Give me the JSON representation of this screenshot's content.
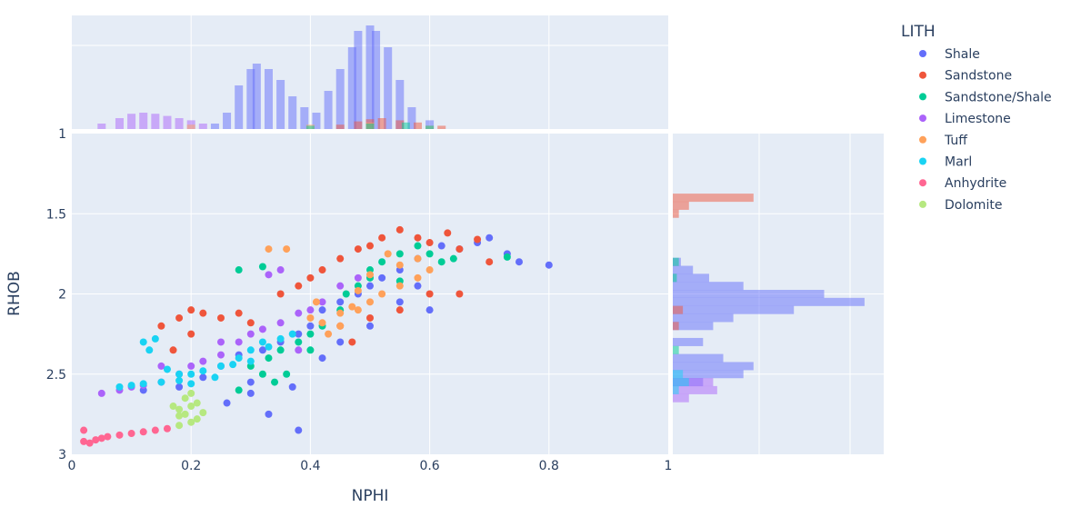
{
  "chart_data": {
    "type": "scatter",
    "xlabel": "NPHI",
    "ylabel": "RHOB",
    "xlim": [
      0,
      1
    ],
    "ylim": [
      3,
      1
    ],
    "y_axis_reversed": true,
    "x_ticks": [
      "0",
      "0.2",
      "0.4",
      "0.6",
      "0.8",
      "1"
    ],
    "y_ticks": [
      "1",
      "1.5",
      "2",
      "2.5",
      "3"
    ],
    "marginal_x": "histogram",
    "marginal_y": "histogram",
    "grid": true,
    "legend_title": "LITH",
    "legend_position": "right",
    "series": [
      {
        "name": "Shale",
        "color": "#636efa",
        "points": [
          [
            0.12,
            2.6
          ],
          [
            0.18,
            2.58
          ],
          [
            0.22,
            2.52
          ],
          [
            0.25,
            2.45
          ],
          [
            0.28,
            2.38
          ],
          [
            0.3,
            2.55
          ],
          [
            0.32,
            2.35
          ],
          [
            0.35,
            2.3
          ],
          [
            0.38,
            2.25
          ],
          [
            0.4,
            2.2
          ],
          [
            0.42,
            2.1
          ],
          [
            0.45,
            2.05
          ],
          [
            0.48,
            2.0
          ],
          [
            0.5,
            1.95
          ],
          [
            0.52,
            1.9
          ],
          [
            0.55,
            1.85
          ],
          [
            0.58,
            1.78
          ],
          [
            0.6,
            2.1
          ],
          [
            0.62,
            1.7
          ],
          [
            0.65,
            1.72
          ],
          [
            0.68,
            1.68
          ],
          [
            0.7,
            1.65
          ],
          [
            0.73,
            1.75
          ],
          [
            0.75,
            1.8
          ],
          [
            0.8,
            1.82
          ],
          [
            0.33,
            2.75
          ],
          [
            0.38,
            2.85
          ],
          [
            0.37,
            2.58
          ],
          [
            0.42,
            2.4
          ],
          [
            0.45,
            2.3
          ],
          [
            0.3,
            2.62
          ],
          [
            0.26,
            2.68
          ],
          [
            0.5,
            2.2
          ],
          [
            0.55,
            2.05
          ],
          [
            0.58,
            1.95
          ]
        ]
      },
      {
        "name": "Sandstone",
        "color": "#ef553b",
        "points": [
          [
            0.15,
            2.2
          ],
          [
            0.18,
            2.15
          ],
          [
            0.2,
            2.1
          ],
          [
            0.22,
            2.12
          ],
          [
            0.25,
            2.15
          ],
          [
            0.28,
            2.12
          ],
          [
            0.3,
            2.18
          ],
          [
            0.35,
            2.0
          ],
          [
            0.38,
            1.95
          ],
          [
            0.4,
            1.9
          ],
          [
            0.42,
            1.85
          ],
          [
            0.45,
            1.78
          ],
          [
            0.48,
            1.72
          ],
          [
            0.5,
            1.7
          ],
          [
            0.52,
            1.65
          ],
          [
            0.55,
            1.6
          ],
          [
            0.58,
            1.65
          ],
          [
            0.6,
            1.68
          ],
          [
            0.63,
            1.62
          ],
          [
            0.65,
            1.72
          ],
          [
            0.68,
            1.66
          ],
          [
            0.7,
            1.8
          ],
          [
            0.55,
            2.1
          ],
          [
            0.5,
            2.15
          ],
          [
            0.45,
            2.2
          ],
          [
            0.6,
            2.0
          ],
          [
            0.65,
            2.0
          ],
          [
            0.2,
            2.25
          ],
          [
            0.17,
            2.35
          ],
          [
            0.47,
            2.3
          ]
        ]
      },
      {
        "name": "Sandstone/Shale",
        "color": "#00cc96",
        "points": [
          [
            0.3,
            2.45
          ],
          [
            0.33,
            2.4
          ],
          [
            0.35,
            2.35
          ],
          [
            0.38,
            2.3
          ],
          [
            0.4,
            2.25
          ],
          [
            0.42,
            2.2
          ],
          [
            0.45,
            2.1
          ],
          [
            0.48,
            1.95
          ],
          [
            0.5,
            1.85
          ],
          [
            0.52,
            1.8
          ],
          [
            0.55,
            1.75
          ],
          [
            0.58,
            1.7
          ],
          [
            0.6,
            1.75
          ],
          [
            0.62,
            1.8
          ],
          [
            0.64,
            1.78
          ],
          [
            0.36,
            2.5
          ],
          [
            0.4,
            2.35
          ],
          [
            0.34,
            2.55
          ],
          [
            0.32,
            2.5
          ],
          [
            0.28,
            1.85
          ],
          [
            0.32,
            1.83
          ],
          [
            0.5,
            1.9
          ],
          [
            0.55,
            1.92
          ],
          [
            0.46,
            2.0
          ],
          [
            0.28,
            2.6
          ],
          [
            0.73,
            1.77
          ]
        ]
      },
      {
        "name": "Limestone",
        "color": "#ab63fa",
        "points": [
          [
            0.05,
            2.62
          ],
          [
            0.08,
            2.6
          ],
          [
            0.1,
            2.58
          ],
          [
            0.12,
            2.57
          ],
          [
            0.15,
            2.55
          ],
          [
            0.18,
            2.5
          ],
          [
            0.2,
            2.45
          ],
          [
            0.22,
            2.42
          ],
          [
            0.25,
            2.38
          ],
          [
            0.28,
            2.3
          ],
          [
            0.3,
            2.25
          ],
          [
            0.32,
            2.22
          ],
          [
            0.35,
            2.18
          ],
          [
            0.38,
            2.12
          ],
          [
            0.4,
            2.1
          ],
          [
            0.42,
            2.05
          ],
          [
            0.45,
            1.95
          ],
          [
            0.48,
            1.9
          ],
          [
            0.35,
            1.85
          ],
          [
            0.33,
            1.88
          ],
          [
            0.25,
            2.3
          ],
          [
            0.15,
            2.45
          ],
          [
            0.38,
            2.35
          ]
        ]
      },
      {
        "name": "Tuff",
        "color": "#ffa15a",
        "points": [
          [
            0.4,
            2.15
          ],
          [
            0.42,
            2.18
          ],
          [
            0.45,
            2.12
          ],
          [
            0.48,
            2.1
          ],
          [
            0.5,
            2.05
          ],
          [
            0.52,
            2.0
          ],
          [
            0.55,
            1.95
          ],
          [
            0.58,
            1.9
          ],
          [
            0.6,
            1.85
          ],
          [
            0.45,
            2.2
          ],
          [
            0.43,
            2.25
          ],
          [
            0.5,
            1.88
          ],
          [
            0.55,
            1.82
          ],
          [
            0.48,
            1.98
          ],
          [
            0.53,
            1.75
          ],
          [
            0.58,
            1.78
          ],
          [
            0.33,
            1.72
          ],
          [
            0.36,
            1.72
          ],
          [
            0.41,
            2.05
          ],
          [
            0.47,
            2.08
          ]
        ]
      },
      {
        "name": "Marl",
        "color": "#19d3f3",
        "points": [
          [
            0.08,
            2.58
          ],
          [
            0.1,
            2.57
          ],
          [
            0.12,
            2.56
          ],
          [
            0.15,
            2.55
          ],
          [
            0.18,
            2.54
          ],
          [
            0.2,
            2.5
          ],
          [
            0.22,
            2.48
          ],
          [
            0.25,
            2.45
          ],
          [
            0.28,
            2.4
          ],
          [
            0.3,
            2.35
          ],
          [
            0.32,
            2.3
          ],
          [
            0.35,
            2.28
          ],
          [
            0.37,
            2.25
          ],
          [
            0.12,
            2.3
          ],
          [
            0.13,
            2.35
          ],
          [
            0.14,
            2.28
          ],
          [
            0.16,
            2.47
          ],
          [
            0.24,
            2.52
          ],
          [
            0.27,
            2.44
          ],
          [
            0.3,
            2.42
          ],
          [
            0.33,
            2.33
          ],
          [
            0.2,
            2.56
          ],
          [
            0.18,
            2.5
          ]
        ]
      },
      {
        "name": "Anhydrite",
        "color": "#ff6692",
        "points": [
          [
            0.02,
            2.92
          ],
          [
            0.03,
            2.93
          ],
          [
            0.04,
            2.91
          ],
          [
            0.05,
            2.9
          ],
          [
            0.06,
            2.89
          ],
          [
            0.08,
            2.88
          ],
          [
            0.1,
            2.87
          ],
          [
            0.12,
            2.86
          ],
          [
            0.14,
            2.85
          ],
          [
            0.16,
            2.84
          ],
          [
            0.02,
            2.85
          ]
        ]
      },
      {
        "name": "Dolomite",
        "color": "#b6e880",
        "points": [
          [
            0.17,
            2.7
          ],
          [
            0.18,
            2.72
          ],
          [
            0.19,
            2.75
          ],
          [
            0.2,
            2.8
          ],
          [
            0.2,
            2.7
          ],
          [
            0.21,
            2.78
          ],
          [
            0.19,
            2.65
          ],
          [
            0.18,
            2.82
          ],
          [
            0.21,
            2.68
          ],
          [
            0.2,
            2.62
          ],
          [
            0.18,
            2.76
          ],
          [
            0.22,
            2.74
          ]
        ]
      }
    ],
    "marginal_x_bins": [
      {
        "series": "Shale",
        "range": [
          0.22,
          0.6
        ],
        "bins": [
          [
            0.24,
            0.05
          ],
          [
            0.26,
            0.15
          ],
          [
            0.28,
            0.4
          ],
          [
            0.3,
            0.55
          ],
          [
            0.31,
            0.6
          ],
          [
            0.33,
            0.55
          ],
          [
            0.35,
            0.45
          ],
          [
            0.37,
            0.3
          ],
          [
            0.39,
            0.2
          ],
          [
            0.41,
            0.15
          ],
          [
            0.43,
            0.35
          ],
          [
            0.45,
            0.55
          ],
          [
            0.47,
            0.75
          ],
          [
            0.48,
            0.9
          ],
          [
            0.5,
            0.95
          ],
          [
            0.51,
            0.9
          ],
          [
            0.53,
            0.75
          ],
          [
            0.55,
            0.45
          ],
          [
            0.57,
            0.2
          ],
          [
            0.6,
            0.08
          ]
        ]
      },
      {
        "series": "Limestone",
        "range": [
          0.02,
          0.3
        ],
        "bins": [
          [
            0.05,
            0.05
          ],
          [
            0.08,
            0.1
          ],
          [
            0.1,
            0.14
          ],
          [
            0.12,
            0.15
          ],
          [
            0.14,
            0.14
          ],
          [
            0.16,
            0.12
          ],
          [
            0.18,
            0.1
          ],
          [
            0.2,
            0.08
          ],
          [
            0.22,
            0.05
          ]
        ]
      },
      {
        "series": "Sandstone",
        "range": [
          0.4,
          0.7
        ],
        "bins": [
          [
            0.45,
            0.04
          ],
          [
            0.48,
            0.07
          ],
          [
            0.5,
            0.09
          ],
          [
            0.52,
            0.1
          ],
          [
            0.55,
            0.08
          ],
          [
            0.58,
            0.06
          ],
          [
            0.62,
            0.03
          ]
        ]
      },
      {
        "series": "Tuff",
        "range": [
          0.0,
          0.7
        ],
        "bins": [
          [
            0.2,
            0.04
          ],
          [
            0.4,
            0.04
          ],
          [
            0.5,
            0.06
          ],
          [
            0.6,
            0.03
          ]
        ]
      },
      {
        "series": "Sandstone/Shale",
        "range": [
          0.3,
          0.7
        ],
        "bins": [
          [
            0.4,
            0.03
          ],
          [
            0.5,
            0.05
          ],
          [
            0.56,
            0.06
          ],
          [
            0.6,
            0.03
          ]
        ]
      }
    ],
    "marginal_y_bins": [
      {
        "series": "Shale",
        "bins": [
          [
            1.8,
            0.04
          ],
          [
            1.85,
            0.1
          ],
          [
            1.9,
            0.18
          ],
          [
            1.95,
            0.35
          ],
          [
            2.0,
            0.75
          ],
          [
            2.05,
            0.95
          ],
          [
            2.1,
            0.6
          ],
          [
            2.15,
            0.3
          ],
          [
            2.2,
            0.2
          ],
          [
            2.3,
            0.15
          ],
          [
            2.4,
            0.25
          ],
          [
            2.45,
            0.4
          ],
          [
            2.5,
            0.35
          ],
          [
            2.55,
            0.15
          ]
        ]
      },
      {
        "series": "Sandstone",
        "bins": [
          [
            1.4,
            0.4
          ],
          [
            1.45,
            0.08
          ],
          [
            1.5,
            0.03
          ],
          [
            2.1,
            0.05
          ],
          [
            2.2,
            0.03
          ]
        ]
      },
      {
        "series": "Limestone",
        "bins": [
          [
            2.55,
            0.2
          ],
          [
            2.6,
            0.22
          ],
          [
            2.65,
            0.08
          ]
        ]
      },
      {
        "series": "Marl",
        "bins": [
          [
            2.5,
            0.05
          ],
          [
            2.55,
            0.08
          ],
          [
            2.6,
            0.03
          ]
        ]
      },
      {
        "series": "Sandstone/Shale",
        "bins": [
          [
            1.8,
            0.03
          ],
          [
            1.9,
            0.02
          ],
          [
            2.35,
            0.03
          ]
        ]
      }
    ]
  }
}
